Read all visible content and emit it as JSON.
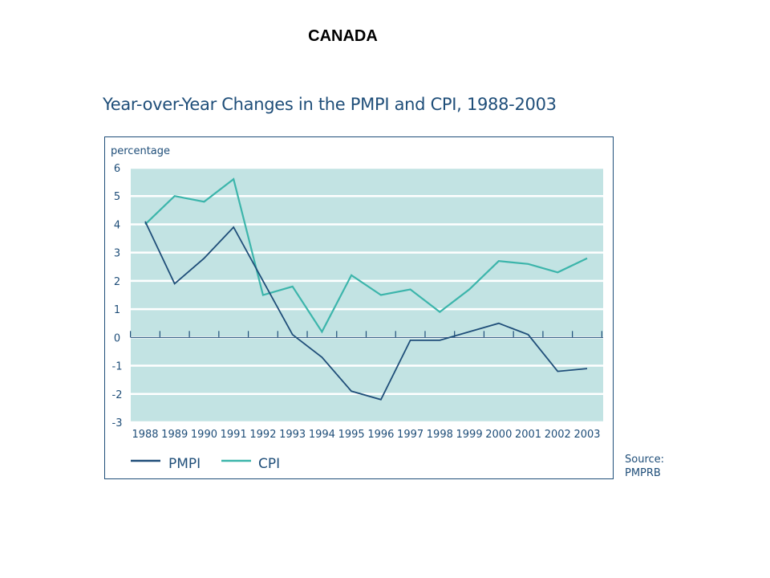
{
  "page": {
    "country": "CANADA",
    "source_line1": "Source:",
    "source_line2": "PMPRB"
  },
  "colors": {
    "pmpi": "#1f4e79",
    "cpi": "#3cb5ab",
    "band": "#c2e3e3",
    "text": "#1f4e79"
  },
  "chart_data": {
    "type": "line",
    "title": "Year-over-Year Changes in the PMPI and CPI, 1988-2003",
    "ylabel": "percentage",
    "xlabel": "",
    "x": [
      "1988",
      "1989",
      "1990",
      "1991",
      "1992",
      "1993",
      "1994",
      "1995",
      "1996",
      "1997",
      "1998",
      "1999",
      "2000",
      "2001",
      "2002",
      "2003"
    ],
    "ylim": [
      -3,
      6
    ],
    "yticks": [
      6,
      5,
      4,
      3,
      2,
      1,
      0,
      -1,
      -2,
      -3
    ],
    "grid": true,
    "legend_position": "bottom",
    "series": [
      {
        "name": "PMPI",
        "color": "#1f4e79",
        "values": [
          4.1,
          1.9,
          2.8,
          3.9,
          2.0,
          0.1,
          -0.7,
          -1.9,
          -2.2,
          -0.1,
          -0.1,
          0.2,
          0.5,
          0.1,
          -1.2,
          -1.1
        ]
      },
      {
        "name": "CPI",
        "color": "#3cb5ab",
        "values": [
          4.0,
          5.0,
          4.8,
          5.6,
          1.5,
          1.8,
          0.2,
          2.2,
          1.5,
          1.7,
          0.9,
          1.7,
          2.7,
          2.6,
          2.3,
          2.8
        ]
      }
    ]
  }
}
